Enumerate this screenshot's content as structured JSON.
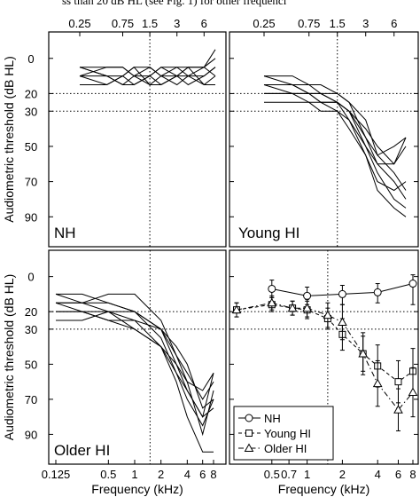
{
  "header_text": "ss than 20 dB HL (see Fig. 1) for other frequenci",
  "chart_data": [
    {
      "type": "line",
      "panel_label": "NH",
      "top_ticks": [
        "0.25",
        "0.75",
        "1.5",
        "3",
        "6"
      ],
      "bottom_ticks": [],
      "xlabel": "",
      "ylabel": "Audiometric threshold (dB HL)",
      "x": [
        0.25,
        0.5,
        0.75,
        1,
        1.5,
        2,
        3,
        4,
        6,
        8
      ],
      "ylim": [
        -15,
        107
      ],
      "y_ticks": [
        0,
        20,
        30,
        50,
        70,
        90
      ],
      "dotted_h": [
        20,
        30
      ],
      "dotted_v": [
        1.5
      ],
      "series": [
        {
          "values": [
            5,
            5,
            5,
            10,
            5,
            10,
            10,
            5,
            5,
            0
          ]
        },
        {
          "values": [
            10,
            10,
            15,
            10,
            10,
            5,
            5,
            10,
            10,
            5
          ]
        },
        {
          "values": [
            5,
            10,
            10,
            5,
            5,
            10,
            5,
            5,
            15,
            15
          ]
        },
        {
          "values": [
            10,
            5,
            5,
            10,
            15,
            10,
            15,
            10,
            5,
            10
          ]
        },
        {
          "values": [
            15,
            15,
            10,
            15,
            10,
            15,
            10,
            15,
            10,
            5
          ]
        },
        {
          "values": [
            5,
            10,
            15,
            15,
            10,
            5,
            10,
            10,
            15,
            10
          ]
        },
        {
          "values": [
            10,
            15,
            10,
            5,
            15,
            15,
            10,
            5,
            5,
            -5
          ]
        }
      ]
    },
    {
      "type": "line",
      "panel_label": "Young HI",
      "top_ticks": [
        "0.25",
        "0.75",
        "1.5",
        "3",
        "6"
      ],
      "bottom_ticks": [],
      "xlabel": "",
      "ylabel": "",
      "x": [
        0.25,
        0.5,
        0.75,
        1,
        1.5,
        2,
        3,
        4,
        6,
        8
      ],
      "ylim": [
        -15,
        107
      ],
      "y_ticks": [],
      "dotted_h": [
        20,
        30
      ],
      "dotted_v": [
        1.5
      ],
      "series": [
        {
          "values": [
            15,
            15,
            20,
            20,
            20,
            25,
            35,
            55,
            65,
            75
          ]
        },
        {
          "values": [
            10,
            15,
            15,
            15,
            20,
            25,
            45,
            60,
            70,
            80
          ]
        },
        {
          "values": [
            20,
            20,
            25,
            25,
            30,
            35,
            50,
            65,
            80,
            85
          ]
        },
        {
          "values": [
            15,
            20,
            20,
            20,
            25,
            30,
            40,
            50,
            60,
            50
          ]
        },
        {
          "values": [
            25,
            25,
            25,
            30,
            30,
            40,
            55,
            70,
            75,
            70
          ]
        },
        {
          "values": [
            10,
            10,
            15,
            20,
            25,
            30,
            45,
            55,
            50,
            45
          ]
        },
        {
          "values": [
            15,
            15,
            20,
            25,
            25,
            30,
            50,
            60,
            60,
            45
          ]
        },
        {
          "values": [
            20,
            20,
            20,
            25,
            25,
            35,
            55,
            75,
            85,
            90
          ]
        }
      ]
    },
    {
      "type": "line",
      "panel_label": "Older HI",
      "top_ticks": [],
      "bottom_ticks": [
        "0.125",
        "0.5",
        "1",
        "2",
        "4",
        "6",
        "8"
      ],
      "xlabel": "Frequency (kHz)",
      "ylabel": "Audiometric threshold (dB HL)",
      "x": [
        0.125,
        0.25,
        0.5,
        1,
        2,
        3,
        4,
        6,
        8
      ],
      "ylim": [
        -15,
        107
      ],
      "y_ticks": [
        0,
        20,
        30,
        50,
        70,
        90
      ],
      "dotted_h": [
        20,
        30
      ],
      "dotted_v": [
        1.5
      ],
      "series": [
        {
          "values": [
            15,
            15,
            10,
            10,
            25,
            45,
            60,
            90,
            65
          ]
        },
        {
          "values": [
            10,
            10,
            15,
            20,
            35,
            55,
            65,
            80,
            55
          ]
        },
        {
          "values": [
            15,
            15,
            20,
            20,
            30,
            45,
            55,
            70,
            60
          ]
        },
        {
          "values": [
            20,
            20,
            20,
            25,
            40,
            55,
            70,
            85,
            70
          ]
        },
        {
          "values": [
            25,
            25,
            20,
            30,
            40,
            50,
            60,
            65,
            55
          ]
        },
        {
          "values": [
            10,
            15,
            15,
            20,
            30,
            40,
            50,
            75,
            70
          ]
        },
        {
          "values": [
            15,
            20,
            25,
            30,
            40,
            60,
            80,
            100,
            100
          ]
        },
        {
          "values": [
            20,
            20,
            25,
            25,
            30,
            50,
            65,
            80,
            75
          ]
        }
      ]
    },
    {
      "type": "line",
      "panel_label": "",
      "top_ticks": [],
      "bottom_ticks": [
        "0.5",
        "0.7",
        "1",
        "2",
        "4",
        "6",
        "8"
      ],
      "xlabel": "Frequency (kHz)",
      "ylabel": "",
      "x": [
        0.25,
        0.5,
        0.75,
        1,
        1.5,
        2,
        3,
        4,
        6,
        8
      ],
      "ylim": [
        -15,
        107
      ],
      "y_ticks": [],
      "dotted_h": [
        20,
        30
      ],
      "dotted_v": [
        1.5
      ],
      "legend_position": "bottom-left",
      "series": [
        {
          "name": "NH",
          "marker": "circle",
          "dash": "solid",
          "x": [
            0.5,
            1,
            2,
            4,
            8
          ],
          "values": [
            7,
            11,
            10,
            9,
            4
          ],
          "err_lo": [
            5,
            5,
            5,
            5,
            5
          ],
          "err_hi": [
            5,
            5,
            6,
            6,
            12
          ]
        },
        {
          "name": "Young HI",
          "marker": "square",
          "dash": "dashed",
          "x": [
            0.25,
            0.5,
            0.75,
            1,
            1.5,
            2,
            3,
            4,
            6,
            8
          ],
          "values": [
            19,
            16,
            18,
            19,
            24,
            33,
            44,
            51,
            60,
            54
          ],
          "err_lo": [
            4,
            4,
            4,
            5,
            6,
            9,
            10,
            12,
            12,
            13
          ],
          "err_hi": [
            4,
            4,
            4,
            5,
            6,
            9,
            10,
            12,
            12,
            13
          ]
        },
        {
          "name": "Older HI",
          "marker": "triangle",
          "dash": "dashdot",
          "x": [
            0.25,
            0.5,
            0.75,
            1,
            1.5,
            2,
            3,
            4,
            6,
            8
          ],
          "values": [
            19,
            15,
            18,
            18,
            22,
            26,
            44,
            61,
            76,
            66
          ],
          "err_lo": [
            4,
            4,
            4,
            5,
            7,
            10,
            12,
            13,
            12,
            14
          ],
          "err_hi": [
            4,
            4,
            4,
            5,
            7,
            10,
            12,
            13,
            12,
            14
          ]
        }
      ]
    }
  ]
}
